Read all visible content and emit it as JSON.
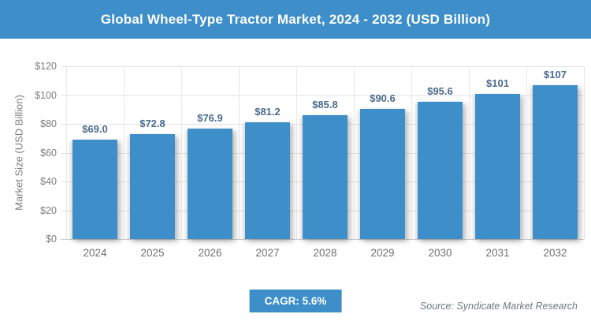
{
  "header": {
    "title": "Global Wheel-Type Tractor Market, 2024 - 2032 (USD Billion)"
  },
  "chart_data": {
    "type": "bar",
    "title": "Global Wheel-Type Tractor Market, 2024 - 2032 (USD Billion)",
    "categories": [
      "2024",
      "2025",
      "2026",
      "2027",
      "2028",
      "2029",
      "2030",
      "2031",
      "2032"
    ],
    "values": [
      69.0,
      72.8,
      76.9,
      81.2,
      85.8,
      90.6,
      95.6,
      101,
      107
    ],
    "value_labels": [
      "$69.0",
      "$72.8",
      "$76.9",
      "$81.2",
      "$85.8",
      "$90.6",
      "$95.6",
      "$101",
      "$107"
    ],
    "xlabel": "",
    "ylabel": "Market Size (USD Billion)",
    "ylim": [
      0,
      120
    ],
    "ytick_step": 20,
    "ytick_labels": [
      "$0",
      "$20",
      "$40",
      "$60",
      "$80",
      "$100",
      "$120"
    ],
    "grid": true,
    "legend_position": "none",
    "bar_color": "#3d8ec9"
  },
  "footer": {
    "cagr_label": "CAGR: 5.6%",
    "source": "Source: Syndicate Market Research"
  },
  "colors": {
    "accent": "#3d8ec9",
    "value_label": "#4a6b8c",
    "axis_text": "#7d7d7d",
    "gridline": "#e2e2e2"
  }
}
